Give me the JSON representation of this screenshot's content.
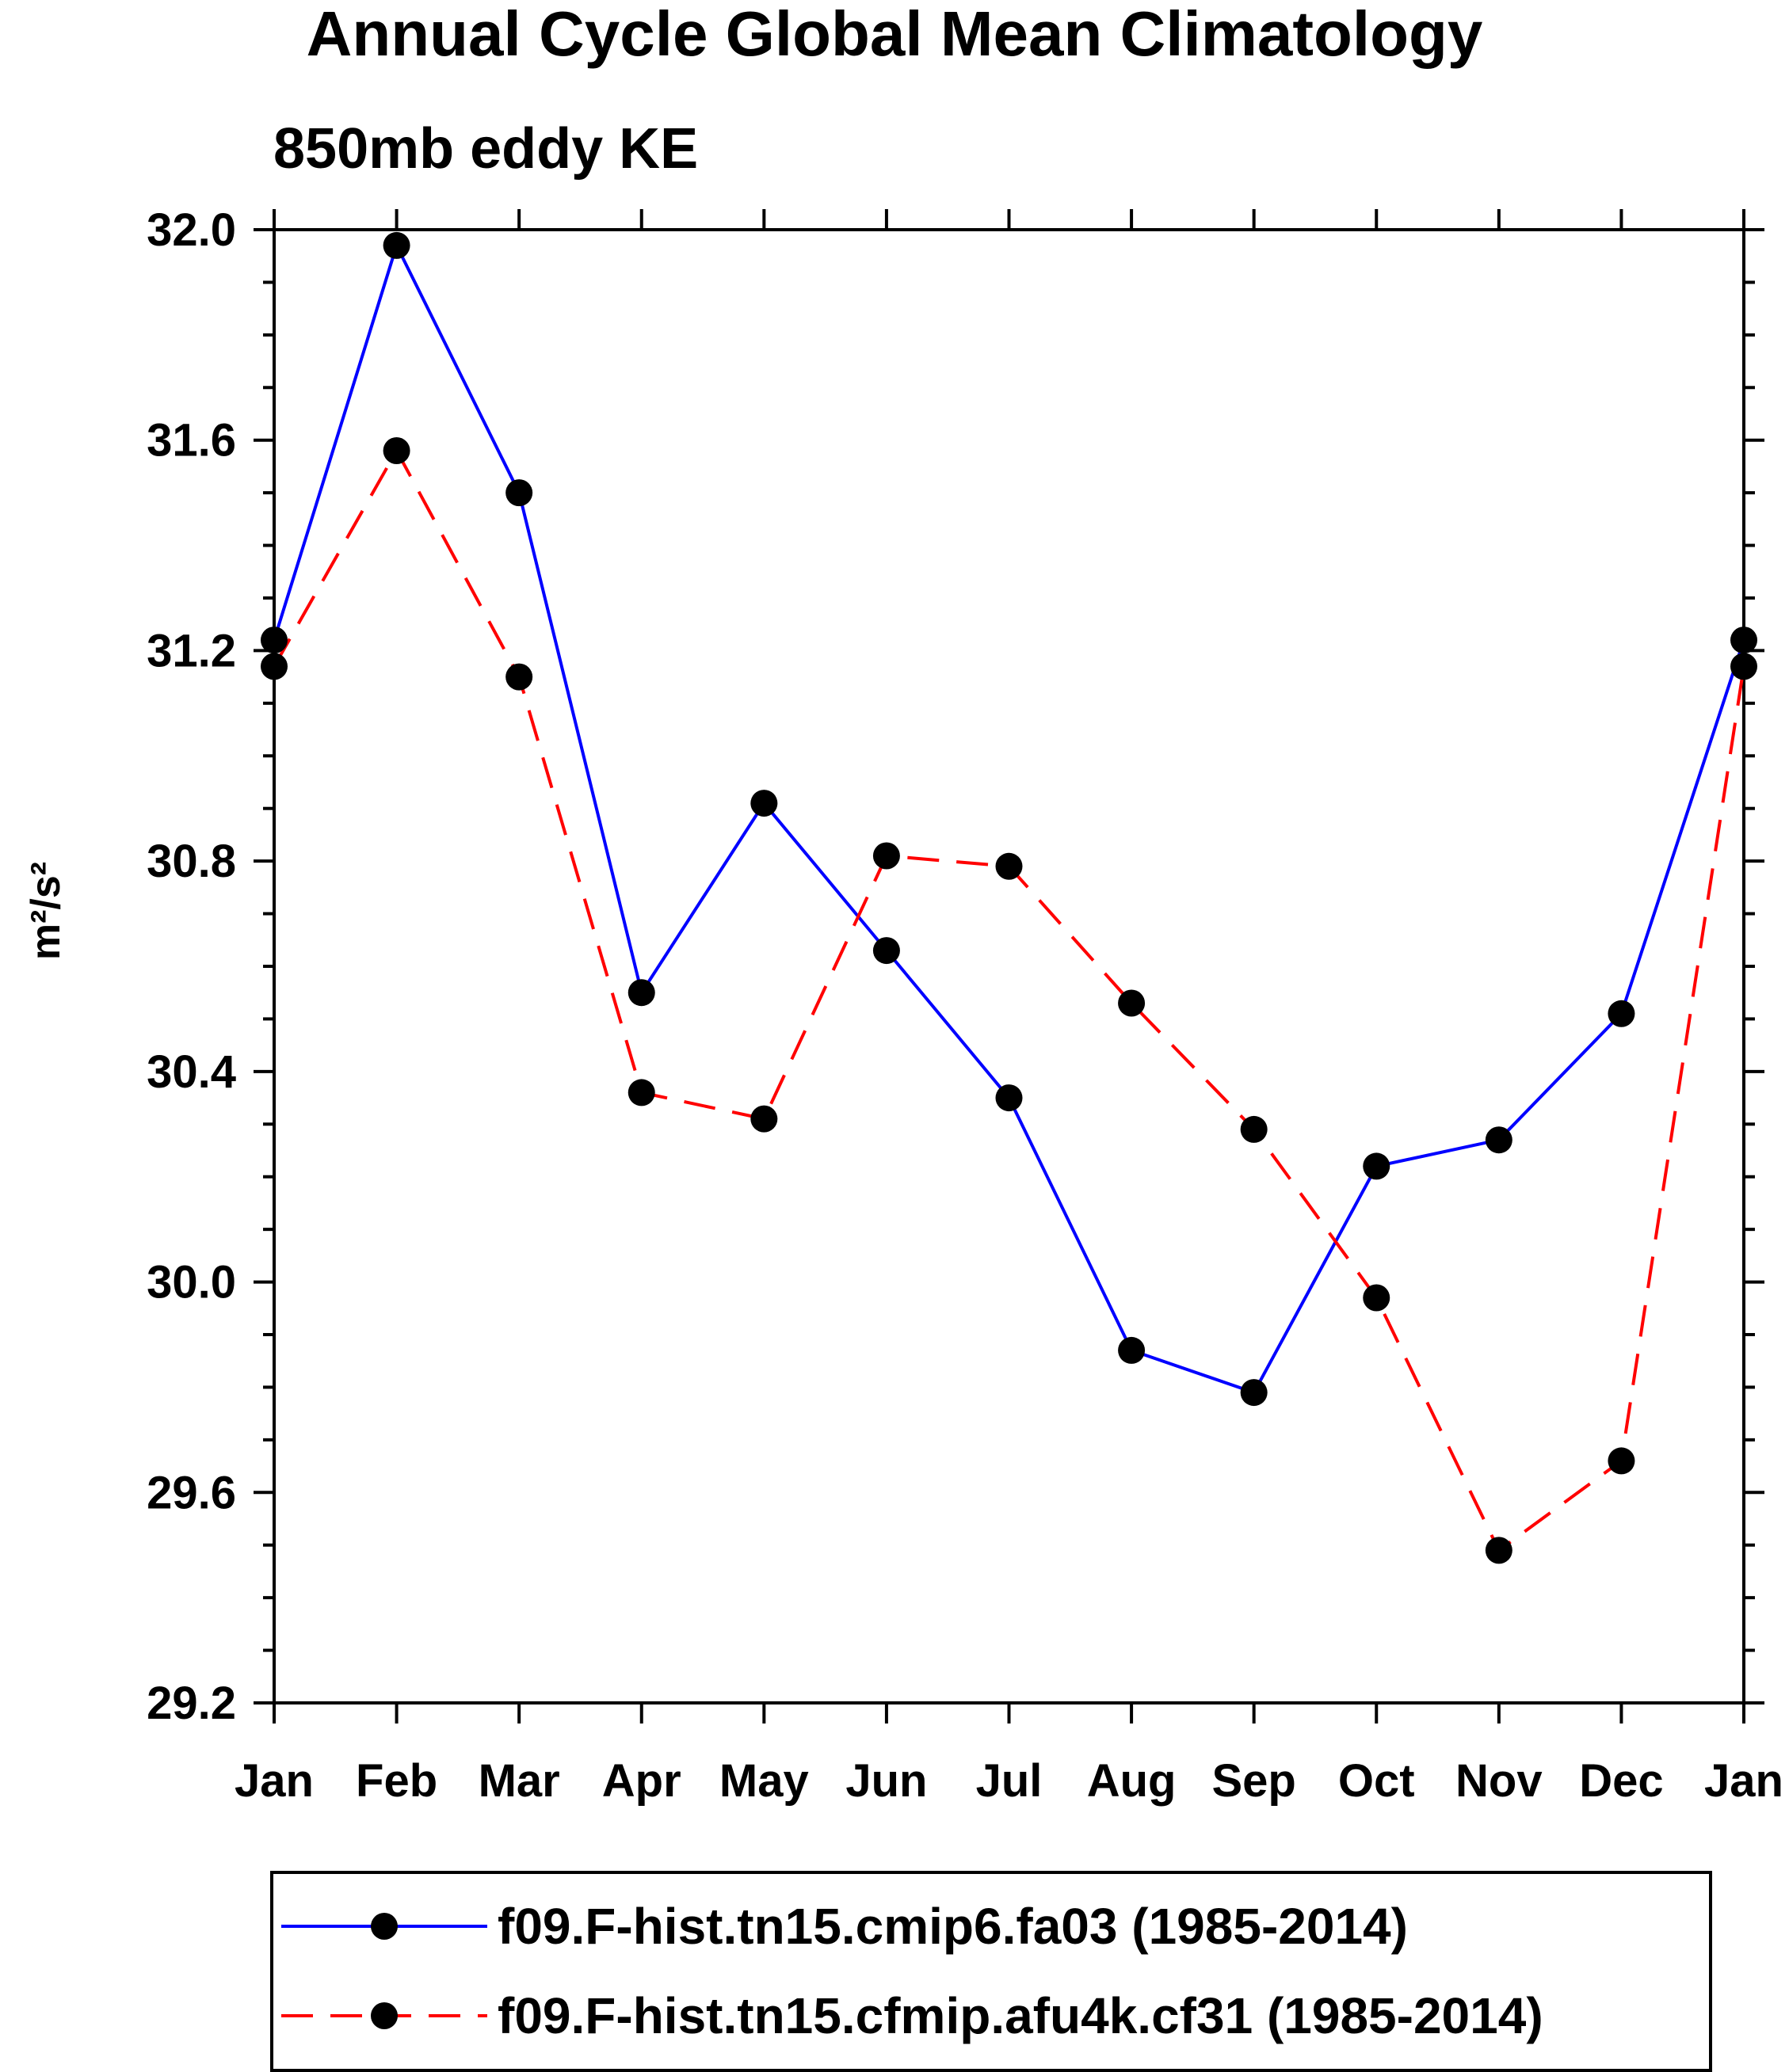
{
  "chart_data": {
    "type": "line",
    "title": "Annual Cycle Global Mean Climatology",
    "subtitle": "850mb eddy KE",
    "ylabel": "m²/s²",
    "xlabel": "",
    "categories": [
      "Jan",
      "Feb",
      "Mar",
      "Apr",
      "May",
      "Jun",
      "Jul",
      "Aug",
      "Sep",
      "Oct",
      "Nov",
      "Dec",
      "Jan"
    ],
    "ylim": [
      29.2,
      32.0
    ],
    "yticks": [
      "32.0",
      "31.6",
      "31.2",
      "30.8",
      "30.4",
      "30.0",
      "29.6",
      "29.2"
    ],
    "series": [
      {
        "name": "f09.F-hist.tn15.cmip6.fa03 (1985-2014)",
        "color": "#0000ff",
        "dash": "solid",
        "values": [
          31.22,
          31.97,
          31.5,
          30.55,
          30.91,
          30.63,
          30.35,
          29.87,
          29.79,
          30.22,
          30.27,
          30.51,
          31.22
        ]
      },
      {
        "name": "f09.F-hist.tn15.cfmip.afu4k.cf31 (1985-2014)",
        "color": "#ff0000",
        "dash": "dashed",
        "values": [
          31.17,
          31.58,
          31.15,
          30.36,
          30.31,
          30.81,
          30.79,
          30.53,
          30.29,
          29.97,
          29.49,
          29.66,
          31.17
        ]
      }
    ]
  }
}
